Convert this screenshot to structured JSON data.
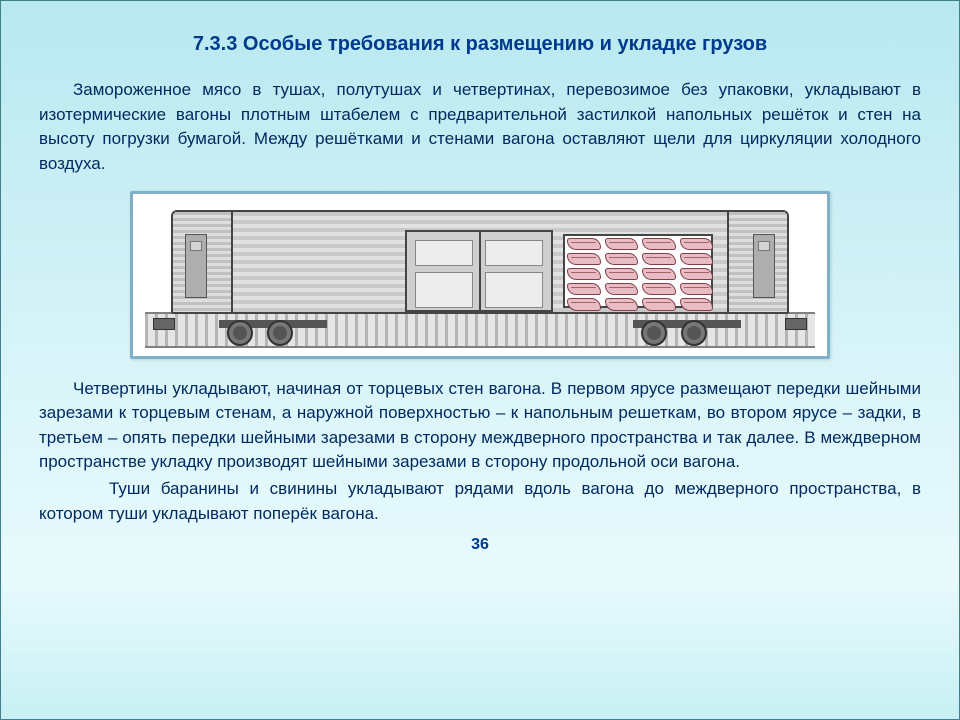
{
  "heading": "7.3.3 Особые требования к размещению и укладке грузов",
  "para1": "Замороженное мясо в тушах, полутушах и четвертинах, перевозимое без упаковки, укладывают в изотермические вагоны плотным штабелем с предварительной застилкой напольных решёток и стен на высоту погрузки бумагой. Между решётками и стенами вагона оставляют щели для циркуляции холодного воздуха.",
  "para2": "Четвертины укладывают, начиная от торцевых стен вагона. В первом ярусе размещают передки шейными зарезами к торцевым стенам, а наружной поверхностью – к напольным решеткам, во втором ярусе – задки, в третьем – опять передки шейными зарезами в сторону междверного пространства и так далее. В междверном пространстве укладку производят шейными зарезами в сторону продольной оси вагона.",
  "para3": "Туши баранины и свинины укладывают рядами вдоль вагона до междверного пространства, в котором туши укладывают поперёк вагона.",
  "pageNumber": "36",
  "figure": {
    "body_background": "#ffffff",
    "border_color": "#7fb0c8",
    "meat_color": "#e8bcc4",
    "meat_outline": "#804048",
    "metal_light": "#e1e1e1",
    "metal_dark": "#c9c9c9",
    "meat_rows": 5,
    "meat_cols": 4
  },
  "colors": {
    "heading": "#003a8c",
    "body_text": "#002a60",
    "page_bg_top": "#b8e8f0",
    "page_bg_bottom": "#c8f0f4"
  }
}
